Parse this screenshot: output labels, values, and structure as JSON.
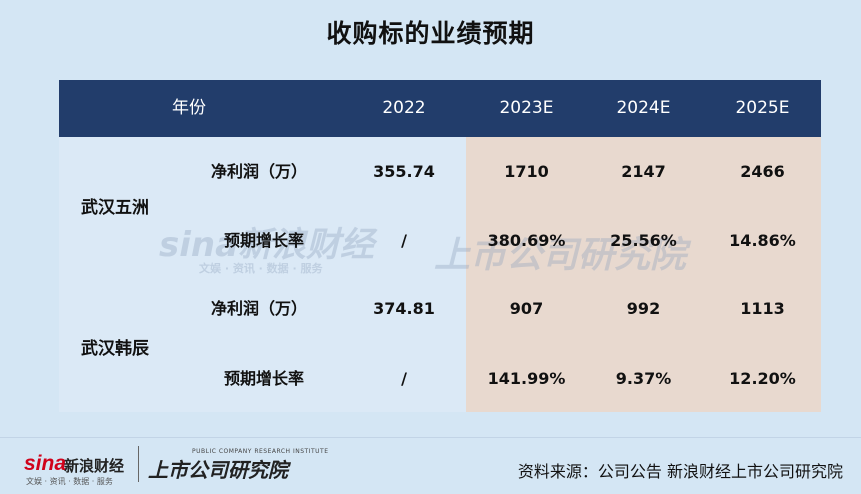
{
  "title": "收购标的业绩预期",
  "table": {
    "headers": [
      "年份",
      "2022",
      "2023E",
      "2024E",
      "2025E"
    ],
    "groups": [
      {
        "company": "武汉五洲",
        "rows": [
          {
            "metric": "净利润（万）",
            "values": [
              "355.74",
              "1710",
              "2147",
              "2466"
            ]
          },
          {
            "metric": "预期增长率",
            "values": [
              "/",
              "380.69%",
              "25.56%",
              "14.86%"
            ]
          }
        ]
      },
      {
        "company": "武汉韩辰",
        "rows": [
          {
            "metric": "净利润（万）",
            "values": [
              "374.81",
              "907",
              "992",
              "1113"
            ]
          },
          {
            "metric": "预期增长率",
            "values": [
              "/",
              "141.99%",
              "9.37%",
              "12.20%"
            ]
          }
        ]
      }
    ]
  },
  "watermark": {
    "sina": "sina新浪财经",
    "sina_sub": "文娱 · 资讯 · 数据 · 服务",
    "institute": "上市公司研究院"
  },
  "footer": {
    "sina_mark": "sina",
    "sina_name": "新浪财经",
    "sina_sub": "文娱 · 资讯 · 数据 · 服务",
    "institute_name": "上市公司研究院",
    "institute_en": "PUBLIC COMPANY RESEARCH INSTITUTE",
    "source": "资料来源：公司公告 新浪财经上市公司研究院"
  },
  "colors": {
    "background": "#d4e6f4",
    "header": "#223d6b",
    "forecast_shade": "#e8d9cf"
  }
}
